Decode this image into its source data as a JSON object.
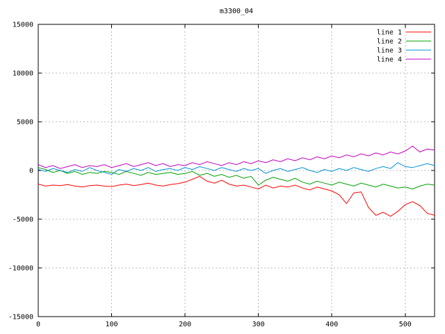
{
  "chart_data": {
    "type": "line",
    "title": "m3300_04",
    "xlabel": "",
    "ylabel": "",
    "xlim": [
      0,
      540
    ],
    "ylim": [
      -15000,
      15000
    ],
    "xticks": [
      0,
      100,
      200,
      300,
      400,
      500
    ],
    "yticks": [
      -15000,
      -10000,
      -5000,
      0,
      5000,
      10000,
      15000
    ],
    "grid": true,
    "legend_position": "top-right",
    "x": [
      0,
      10,
      20,
      30,
      40,
      50,
      60,
      70,
      80,
      90,
      100,
      110,
      120,
      130,
      140,
      150,
      160,
      170,
      180,
      190,
      200,
      210,
      220,
      230,
      240,
      250,
      260,
      270,
      280,
      290,
      300,
      310,
      320,
      330,
      340,
      350,
      360,
      370,
      380,
      390,
      400,
      410,
      420,
      430,
      440,
      450,
      460,
      470,
      480,
      490,
      500,
      510,
      520,
      530,
      540
    ],
    "series": [
      {
        "name": "line 1",
        "color": "#ff0000",
        "values": [
          -1400,
          -1600,
          -1500,
          -1550,
          -1450,
          -1600,
          -1700,
          -1550,
          -1500,
          -1600,
          -1650,
          -1500,
          -1400,
          -1550,
          -1450,
          -1300,
          -1500,
          -1600,
          -1450,
          -1350,
          -1200,
          -900,
          -600,
          -1100,
          -1300,
          -1000,
          -1400,
          -1600,
          -1500,
          -1700,
          -1900,
          -1500,
          -1800,
          -1600,
          -1700,
          -1500,
          -1800,
          -2000,
          -1700,
          -1900,
          -2100,
          -2500,
          -3400,
          -2300,
          -2200,
          -3800,
          -4600,
          -4300,
          -4700,
          -4200,
          -3500,
          -3200,
          -3600,
          -4400,
          -4600
        ]
      },
      {
        "name": "line 2",
        "color": "#00a000",
        "values": [
          300,
          100,
          -200,
          0,
          -300,
          -100,
          -400,
          -200,
          -300,
          -100,
          -200,
          -400,
          -100,
          -300,
          -500,
          -200,
          -400,
          -300,
          -200,
          -400,
          -300,
          -100,
          -500,
          -300,
          -600,
          -400,
          -700,
          -500,
          -800,
          -600,
          -1500,
          -1000,
          -700,
          -900,
          -1100,
          -800,
          -1200,
          -1400,
          -1100,
          -1300,
          -1500,
          -1200,
          -1400,
          -1600,
          -1300,
          -1500,
          -1700,
          -1400,
          -1600,
          -1800,
          -1700,
          -1900,
          -1600,
          -1400,
          -1500
        ]
      },
      {
        "name": "line 3",
        "color": "#0090d0",
        "values": [
          100,
          -100,
          200,
          0,
          -200,
          100,
          -100,
          300,
          0,
          -200,
          -400,
          100,
          -100,
          200,
          0,
          300,
          -100,
          100,
          200,
          0,
          300,
          100,
          400,
          200,
          0,
          300,
          100,
          -100,
          200,
          0,
          200,
          -300,
          0,
          200,
          -100,
          100,
          300,
          0,
          -200,
          100,
          -100,
          200,
          0,
          300,
          100,
          -100,
          200,
          400,
          200,
          800,
          400,
          300,
          500,
          700,
          500
        ]
      },
      {
        "name": "line 4",
        "color": "#c000c0",
        "values": [
          600,
          300,
          500,
          200,
          400,
          600,
          300,
          500,
          400,
          600,
          300,
          500,
          700,
          400,
          600,
          800,
          500,
          700,
          400,
          600,
          500,
          800,
          600,
          900,
          700,
          500,
          800,
          600,
          900,
          700,
          1000,
          800,
          1100,
          900,
          1200,
          1000,
          1300,
          1100,
          1400,
          1200,
          1500,
          1300,
          1600,
          1400,
          1700,
          1500,
          1800,
          1600,
          1900,
          1700,
          2000,
          2500,
          1900,
          2200,
          2100
        ]
      }
    ],
    "colors": {
      "background": "#ffffff",
      "grid": "#b8b8b8",
      "axis": "#000000",
      "text": "#000000"
    }
  }
}
